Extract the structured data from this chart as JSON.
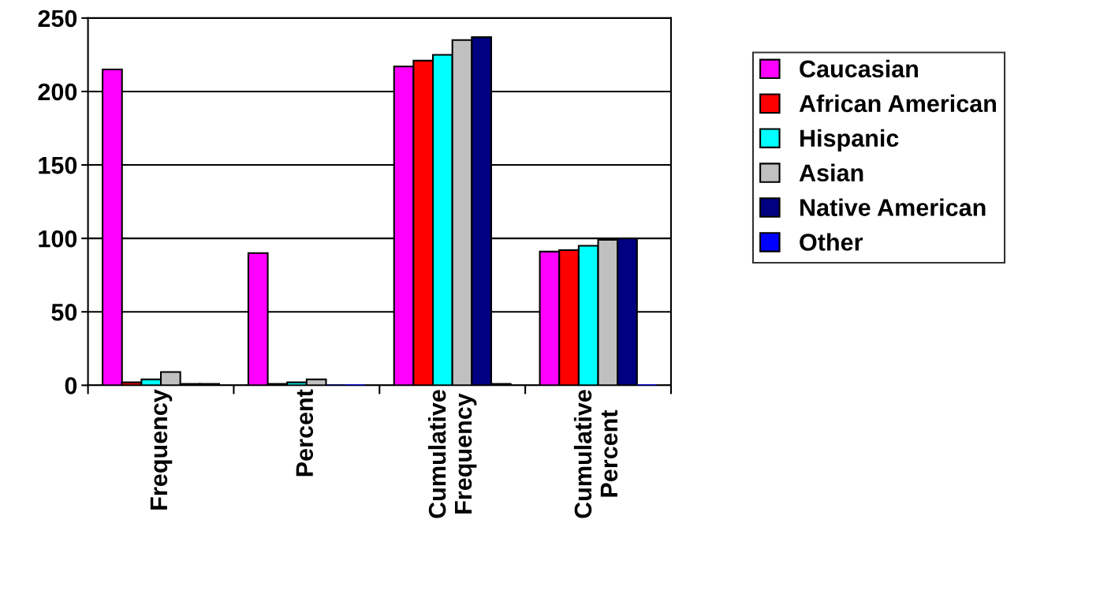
{
  "chart_data": {
    "type": "bar",
    "categories": [
      "Frequency",
      "Percent",
      "Cumulative Frequency",
      "Cumulative Percent"
    ],
    "series": [
      {
        "name": "Caucasian",
        "color": "#ff00ff",
        "values": [
          215,
          90,
          217,
          91
        ]
      },
      {
        "name": "African American",
        "color": "#ff0000",
        "values": [
          2,
          1,
          221,
          92
        ]
      },
      {
        "name": "Hispanic",
        "color": "#00ffff",
        "values": [
          4,
          2,
          225,
          95
        ]
      },
      {
        "name": "Asian",
        "color": "#c0c0c0",
        "values": [
          9,
          4,
          235,
          99
        ]
      },
      {
        "name": "Native American",
        "color": "#000080",
        "values": [
          1,
          0,
          237,
          100
        ]
      },
      {
        "name": "Other",
        "color": "#0000ff",
        "values": [
          1,
          0,
          1,
          0
        ]
      }
    ],
    "ylim": [
      0,
      250
    ],
    "yticks": [
      0,
      50,
      100,
      150,
      200,
      250
    ],
    "grid": "y",
    "legend": "right"
  }
}
